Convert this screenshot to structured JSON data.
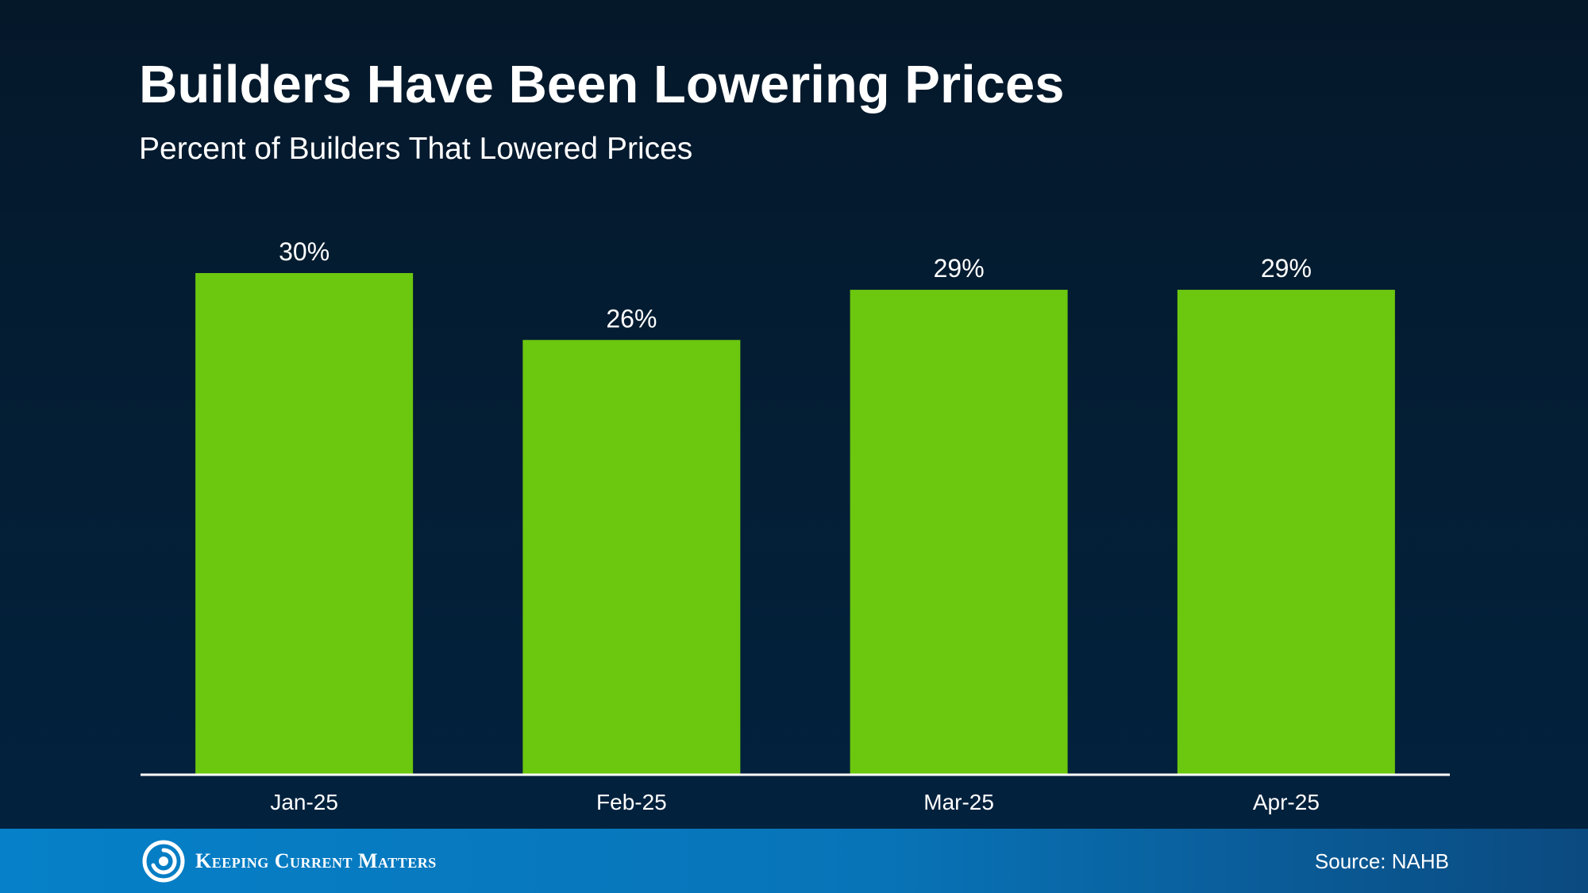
{
  "chart_data": {
    "type": "bar",
    "title": "Builders Have Been Lowering Prices",
    "subtitle": "Percent of Builders That Lowered Prices",
    "categories": [
      "Jan-25",
      "Feb-25",
      "Mar-25",
      "Apr-25"
    ],
    "values": [
      30,
      26,
      29,
      29
    ],
    "data_labels": [
      "30%",
      "26%",
      "29%",
      "29%"
    ],
    "xlabel": "",
    "ylabel": "",
    "ylim": [
      0,
      30
    ],
    "grid": false,
    "legend": "none",
    "bar_color": "#6cc70f"
  },
  "footer": {
    "brand_name": "Keeping Current Matters",
    "source": "Source: NAHB"
  },
  "colors": {
    "background": "#041d33",
    "bar": "#6cc70f",
    "footer": "#0777bd",
    "text": "#ffffff"
  }
}
